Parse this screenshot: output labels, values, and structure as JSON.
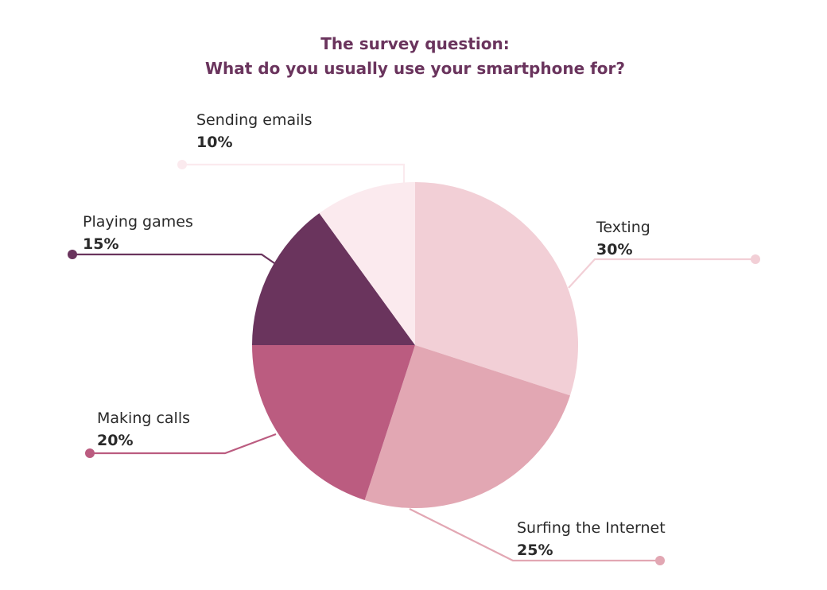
{
  "chart_data": {
    "type": "pie",
    "title": [
      "The survey question:",
      "What do you usually use your smartphone for?"
    ],
    "start": "12 o'clock, clockwise",
    "slices": [
      {
        "label": "Texting",
        "value": 30,
        "value_label": "30%",
        "color": "#f2cfd6"
      },
      {
        "label": "Surfing the Internet",
        "value": 25,
        "value_label": "25%",
        "color": "#e2a7b3"
      },
      {
        "label": "Making calls",
        "value": 20,
        "value_label": "20%",
        "color": "#bb5c80"
      },
      {
        "label": "Playing games",
        "value": 15,
        "value_label": "15%",
        "color": "#6a345d"
      },
      {
        "label": "Sending emails",
        "value": 10,
        "value_label": "10%",
        "color": "#fbeaee"
      }
    ],
    "title_color": "#6a345d",
    "legend": "none (callout labels)"
  }
}
